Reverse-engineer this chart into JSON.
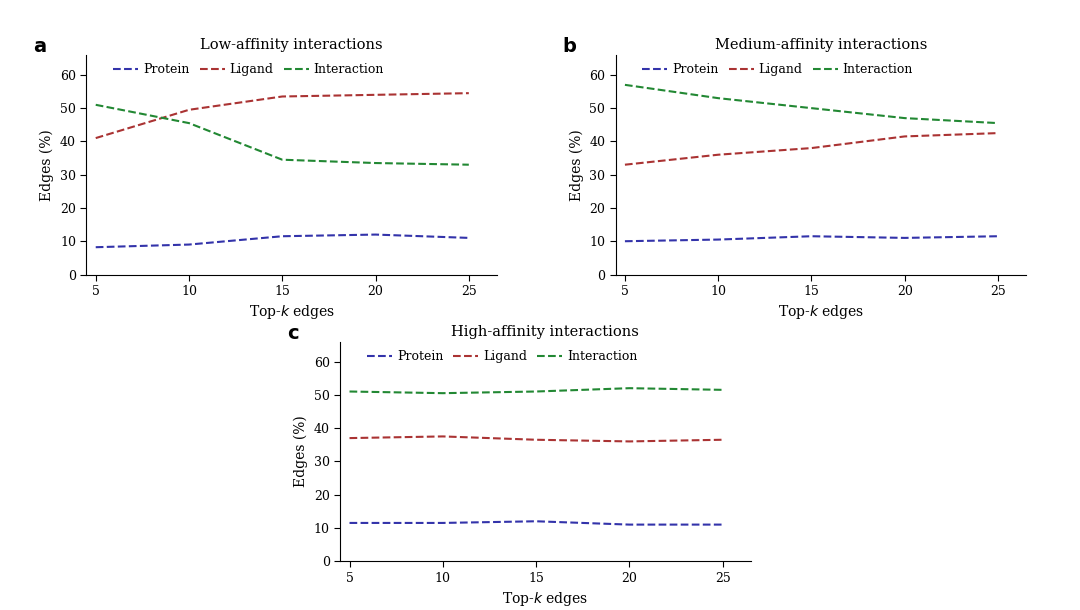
{
  "x": [
    5,
    10,
    15,
    20,
    25
  ],
  "panels": [
    {
      "title": "Low-affinity interactions",
      "label": "a",
      "protein": [
        8.2,
        9.0,
        11.5,
        12.0,
        11.0
      ],
      "ligand": [
        41.0,
        49.5,
        53.5,
        54.0,
        54.5
      ],
      "interaction": [
        51.0,
        45.5,
        34.5,
        33.5,
        33.0
      ]
    },
    {
      "title": "Medium-affinity interactions",
      "label": "b",
      "protein": [
        10.0,
        10.5,
        11.5,
        11.0,
        11.5
      ],
      "ligand": [
        33.0,
        36.0,
        38.0,
        41.5,
        42.5
      ],
      "interaction": [
        57.0,
        53.0,
        50.0,
        47.0,
        45.5
      ]
    },
    {
      "title": "High-affinity interactions",
      "label": "c",
      "protein": [
        11.5,
        11.5,
        12.0,
        11.0,
        11.0
      ],
      "ligand": [
        37.0,
        37.5,
        36.5,
        36.0,
        36.5
      ],
      "interaction": [
        51.0,
        50.5,
        51.0,
        52.0,
        51.5
      ]
    }
  ],
  "protein_color": "#3333aa",
  "ligand_color": "#aa3333",
  "interaction_color": "#228833",
  "ylabel": "Edges (%)",
  "ylim": [
    0,
    66
  ],
  "yticks": [
    0,
    10,
    20,
    30,
    40,
    50,
    60
  ],
  "xticks": [
    5,
    10,
    15,
    20,
    25
  ],
  "background_color": "#ffffff",
  "line_width": 1.5
}
